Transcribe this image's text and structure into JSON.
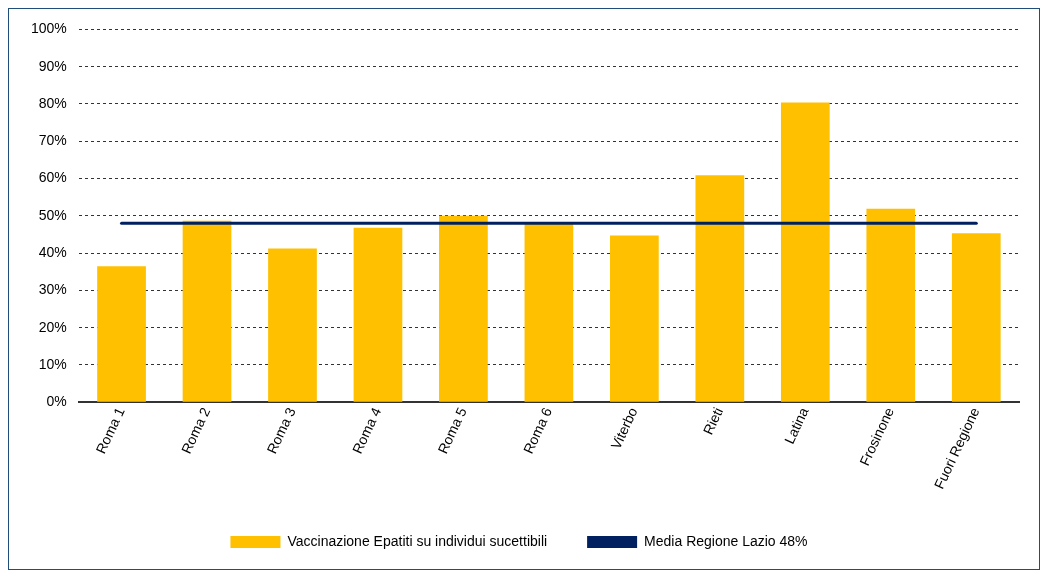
{
  "chart_data": {
    "type": "bar",
    "categories": [
      "Roma 1",
      "Roma 2",
      "Roma 3",
      "Roma 4",
      "Roma 5",
      "Roma 6",
      "Viterbo",
      "Rieti",
      "Latina",
      "Frosinone",
      "Fuori Regione"
    ],
    "series": [
      {
        "name": "Vaccinazione Epatiti su individui sucettibili",
        "color": "#ffc000",
        "values": [
          36.5,
          48.7,
          41.2,
          46.8,
          50.0,
          48.0,
          44.7,
          60.9,
          80.4,
          51.9,
          45.3
        ]
      },
      {
        "name": "Media Regione Lazio 48%",
        "type": "line",
        "color": "#002060",
        "values": [
          48,
          48,
          48,
          48,
          48,
          48,
          48,
          48,
          48,
          48,
          48
        ]
      }
    ],
    "ylim": [
      0,
      100
    ],
    "yticks": [
      {
        "value": 0,
        "label": "0%"
      },
      {
        "value": 10,
        "label": "10%"
      },
      {
        "value": 20,
        "label": "20%"
      },
      {
        "value": 30,
        "label": "30%"
      },
      {
        "value": 40,
        "label": "40%"
      },
      {
        "value": 50,
        "label": "50%"
      },
      {
        "value": 60,
        "label": "60%"
      },
      {
        "value": 70,
        "label": "70%"
      },
      {
        "value": 80,
        "label": "80%"
      },
      {
        "value": 90,
        "label": "90%"
      },
      {
        "value": 100,
        "label": "100%"
      }
    ],
    "grid": "y",
    "legend": "bottom",
    "marker": "none"
  }
}
